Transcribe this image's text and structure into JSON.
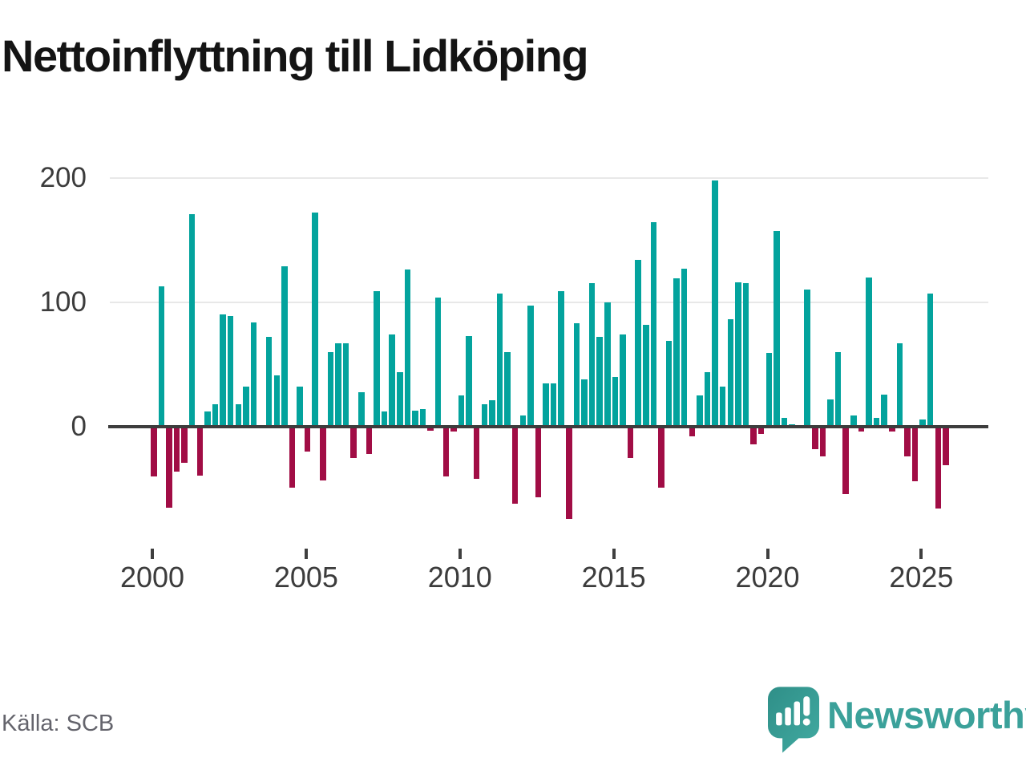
{
  "title": "Nettoinflyttning till Lidköping",
  "source": {
    "text": "Källa: SCB"
  },
  "brand": {
    "name": "Newsworthy",
    "color": "#3ba19a"
  },
  "colors": {
    "positive": "#03a39d",
    "negative": "#a10d45",
    "zero_axis": "#3d3d3d",
    "gridline": "#e8e8e8",
    "tick_label": "#3c3c3c",
    "title_text": "#141414",
    "source_text": "#64646c"
  },
  "chart_data": {
    "type": "bar",
    "title": "Nettoinflyttning till Lidköping",
    "x_tick_labels": [
      "2000",
      "2005",
      "2010",
      "2015",
      "2020",
      "2025"
    ],
    "y_ticks": [
      0,
      100,
      200
    ],
    "ylim": [
      -80,
      215
    ],
    "grid": "horizontal-only",
    "legend": "none",
    "positive_color": "#03a39d",
    "negative_color": "#a10d45",
    "series": [
      {
        "year": 2000,
        "quarters": [
          -40,
          113,
          -65,
          -36
        ]
      },
      {
        "year": 2001,
        "quarters": [
          -29,
          171,
          -39,
          12
        ]
      },
      {
        "year": 2002,
        "quarters": [
          18,
          90,
          89,
          18
        ]
      },
      {
        "year": 2003,
        "quarters": [
          32,
          84,
          0,
          72
        ]
      },
      {
        "year": 2004,
        "quarters": [
          41,
          129,
          -49,
          32
        ]
      },
      {
        "year": 2005,
        "quarters": [
          -20,
          172,
          -43,
          60
        ]
      },
      {
        "year": 2006,
        "quarters": [
          67,
          67,
          -25,
          28
        ]
      },
      {
        "year": 2007,
        "quarters": [
          -22,
          109,
          12,
          74
        ]
      },
      {
        "year": 2008,
        "quarters": [
          44,
          126,
          13,
          14
        ]
      },
      {
        "year": 2009,
        "quarters": [
          -3,
          104,
          -40,
          -4
        ]
      },
      {
        "year": 2010,
        "quarters": [
          25,
          73,
          -42,
          18
        ]
      },
      {
        "year": 2011,
        "quarters": [
          21,
          107,
          60,
          -62
        ]
      },
      {
        "year": 2012,
        "quarters": [
          9,
          97,
          -57,
          35
        ]
      },
      {
        "year": 2013,
        "quarters": [
          35,
          109,
          -74,
          83
        ]
      },
      {
        "year": 2014,
        "quarters": [
          38,
          115,
          72,
          100
        ]
      },
      {
        "year": 2015,
        "quarters": [
          40,
          74,
          -25,
          134
        ]
      },
      {
        "year": 2016,
        "quarters": [
          82,
          164,
          -49,
          69
        ]
      },
      {
        "year": 2017,
        "quarters": [
          119,
          127,
          -8,
          25
        ]
      },
      {
        "year": 2018,
        "quarters": [
          44,
          198,
          32,
          86
        ]
      },
      {
        "year": 2019,
        "quarters": [
          116,
          115,
          -14,
          -6
        ]
      },
      {
        "year": 2020,
        "quarters": [
          59,
          157,
          7,
          2
        ]
      },
      {
        "year": 2021,
        "quarters": [
          0,
          110,
          -18,
          -24
        ]
      },
      {
        "year": 2022,
        "quarters": [
          22,
          60,
          -54,
          9
        ]
      },
      {
        "year": 2023,
        "quarters": [
          -4,
          120,
          7,
          26
        ]
      },
      {
        "year": 2024,
        "quarters": [
          -4,
          67,
          -24,
          -44
        ]
      },
      {
        "year": 2025,
        "quarters": [
          6,
          107,
          -66,
          -31
        ]
      }
    ]
  }
}
